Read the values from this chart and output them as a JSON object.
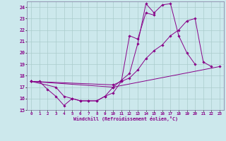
{
  "xlabel": "Windchill (Refroidissement éolien,°C)",
  "background_color": "#cce8ec",
  "grid_color": "#aacccc",
  "line_color": "#880088",
  "xlim": [
    -0.5,
    23.5
  ],
  "ylim": [
    15.0,
    24.5
  ],
  "yticks": [
    15,
    16,
    17,
    18,
    19,
    20,
    21,
    22,
    23,
    24
  ],
  "xticks": [
    0,
    1,
    2,
    3,
    4,
    5,
    6,
    7,
    8,
    9,
    10,
    11,
    12,
    13,
    14,
    15,
    16,
    17,
    18,
    19,
    20,
    21,
    22,
    23
  ],
  "series": [
    [
      [
        0,
        17.5
      ],
      [
        1,
        17.5
      ],
      [
        2,
        16.8
      ],
      [
        3,
        16.2
      ],
      [
        4,
        15.4
      ],
      [
        5,
        16.0
      ],
      [
        6,
        15.8
      ],
      [
        7,
        15.8
      ],
      [
        8,
        15.8
      ],
      [
        9,
        16.2
      ],
      [
        10,
        17.0
      ],
      [
        11,
        17.6
      ],
      [
        12,
        18.2
      ],
      [
        13,
        20.8
      ],
      [
        14,
        24.3
      ],
      [
        15,
        23.5
      ],
      [
        16,
        24.2
      ],
      [
        17,
        24.3
      ],
      [
        18,
        21.5
      ],
      [
        19,
        20.0
      ],
      [
        20,
        19.0
      ]
    ],
    [
      [
        0,
        17.5
      ],
      [
        3,
        17.0
      ],
      [
        4,
        16.2
      ],
      [
        5,
        16.0
      ],
      [
        6,
        15.8
      ],
      [
        7,
        15.8
      ],
      [
        8,
        15.8
      ],
      [
        9,
        16.2
      ],
      [
        10,
        16.5
      ],
      [
        11,
        17.5
      ],
      [
        12,
        21.5
      ],
      [
        13,
        21.2
      ],
      [
        14,
        23.5
      ],
      [
        15,
        23.3
      ]
    ],
    [
      [
        0,
        17.5
      ],
      [
        10,
        17.2
      ],
      [
        11,
        17.5
      ],
      [
        12,
        17.8
      ],
      [
        13,
        18.5
      ],
      [
        14,
        19.5
      ],
      [
        15,
        20.2
      ],
      [
        16,
        20.7
      ],
      [
        17,
        21.5
      ],
      [
        18,
        22.0
      ],
      [
        19,
        22.8
      ],
      [
        20,
        23.0
      ],
      [
        21,
        19.2
      ],
      [
        22,
        18.8
      ]
    ],
    [
      [
        0,
        17.5
      ],
      [
        10,
        17.0
      ],
      [
        23,
        18.8
      ]
    ]
  ]
}
